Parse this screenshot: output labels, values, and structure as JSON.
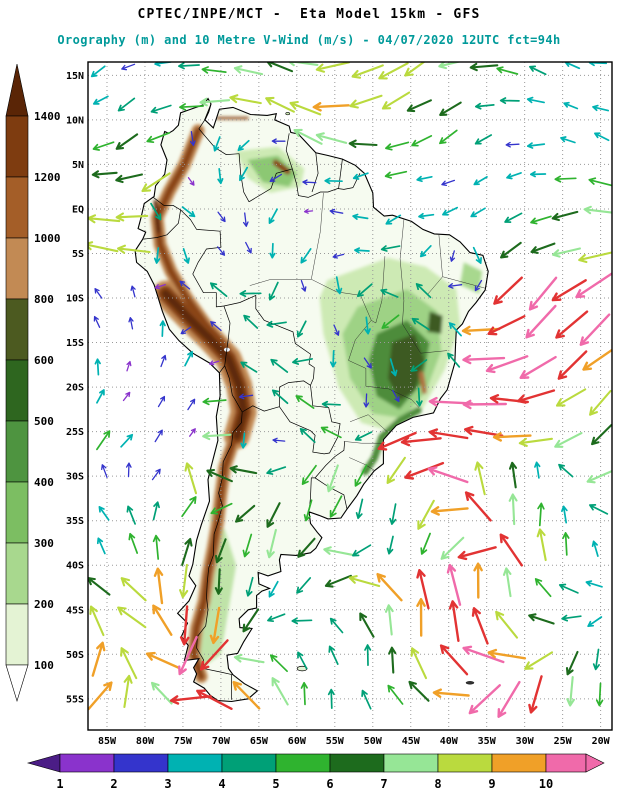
{
  "header": {
    "title": "CPTEC/INPE/MCT -  Eta Model 15km - GFS",
    "subtitle": "Orography (m) and 10 Metre V-Wind (m/s) - 04/07/2020 12UTC fct=94h",
    "title_color": "#000000",
    "subtitle_color": "#009a9a"
  },
  "map": {
    "lat_labels": [
      "15N",
      "10N",
      "5N",
      "EQ",
      "5S",
      "10S",
      "15S",
      "20S",
      "25S",
      "30S",
      "35S",
      "40S",
      "45S",
      "50S",
      "55S"
    ],
    "lat_values": [
      15,
      10,
      5,
      0,
      -5,
      -10,
      -15,
      -20,
      -25,
      -30,
      -35,
      -40,
      -45,
      -50,
      -55
    ],
    "lon_labels": [
      "85W",
      "80W",
      "75W",
      "70W",
      "65W",
      "60W",
      "55W",
      "50W",
      "45W",
      "40W",
      "35W",
      "30W",
      "25W",
      "20W"
    ],
    "lon_values": [
      -85,
      -80,
      -75,
      -70,
      -65,
      -60,
      -55,
      -50,
      -45,
      -40,
      -35,
      -30,
      -25,
      -20
    ],
    "grid_color": "#9a9a9a",
    "frame_color": "#000000",
    "coast_color": "#000000",
    "land_low_color": "#f6fbf0",
    "ocean_color": "#ffffff",
    "arrow_red": "#e23333"
  },
  "orography_scale": {
    "unit": "m",
    "tick_labels": [
      "1400",
      "1200",
      "1000",
      "800",
      "600",
      "500",
      "400",
      "300",
      "200",
      "100"
    ],
    "arrow_top_color": "#5a2506",
    "segment_colors_top_to_bottom": [
      "#7e3c10",
      "#a45e28",
      "#c28a54",
      "#4c5a20",
      "#2e661f",
      "#4e9440",
      "#7cbe62",
      "#a8d88e",
      "#e4f3d4"
    ],
    "arrow_bottom_color": "#ffffff"
  },
  "wind_scale": {
    "unit": "m/s",
    "tick_labels": [
      "1",
      "2",
      "3",
      "4",
      "5",
      "6",
      "7",
      "8",
      "9",
      "10"
    ],
    "arrow_left_color": "#4b1d86",
    "segment_colors": [
      "#8a33cc",
      "#3434cc",
      "#00b2b2",
      "#00a077",
      "#2fb32f",
      "#1d6b1d",
      "#96e696",
      "#bada3e",
      "#f0a028",
      "#f06aaa"
    ],
    "arrow_right_color": "#f06aaa"
  }
}
